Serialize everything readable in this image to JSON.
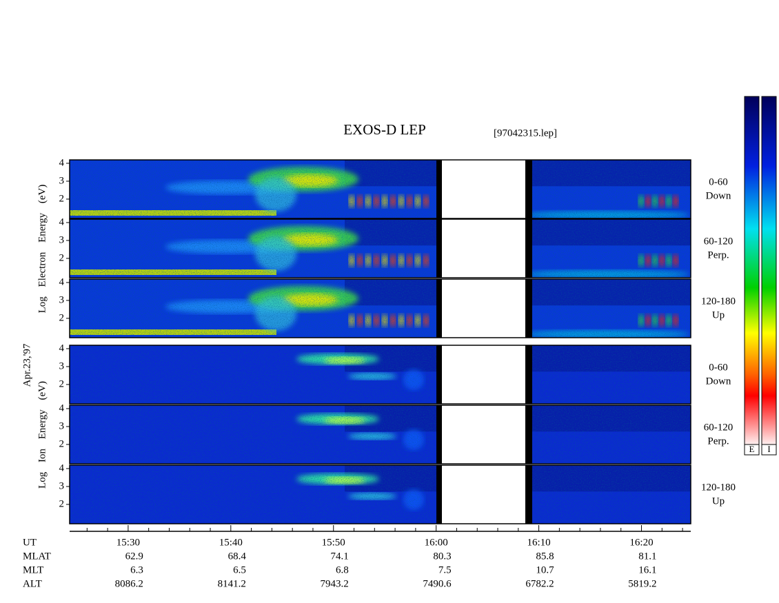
{
  "chart_data": {
    "type": "spectrogram",
    "title": "EXOS-D LEP",
    "file": "[97042315.lep]",
    "date_label": "Apr.23,'97",
    "x_axis_name": "UT",
    "xlim": [
      924.3,
      984.8
    ],
    "xticks": [
      {
        "value": 930,
        "label": "15:30"
      },
      {
        "value": 940,
        "label": "15:40"
      },
      {
        "value": 950,
        "label": "15:50"
      },
      {
        "value": 960,
        "label": "16:00"
      },
      {
        "value": 970,
        "label": "16:10"
      },
      {
        "value": 980,
        "label": "16:20"
      }
    ],
    "x_minor_ticks": [
      926,
      928,
      932,
      934,
      936,
      938,
      942,
      944,
      946,
      948,
      952,
      954,
      956,
      958,
      962,
      964,
      966,
      968,
      972,
      974,
      976,
      978,
      982,
      984
    ],
    "ylim": [
      0.92,
      4.19
    ],
    "yticks": [
      2,
      3,
      4
    ],
    "groups": [
      {
        "axis_label": "Log Electron Energy (eV)",
        "colorbar_label": "E",
        "panels": [
          {
            "pitch": "0-60",
            "direction": "Down"
          },
          {
            "pitch": "60-120",
            "direction": "Perp."
          },
          {
            "pitch": "120-180",
            "direction": "Up"
          }
        ]
      },
      {
        "axis_label": "Log Ion Energy (eV)",
        "colorbar_label": "I",
        "panels": [
          {
            "pitch": "0-60",
            "direction": "Down"
          },
          {
            "pitch": "60-120",
            "direction": "Perp."
          },
          {
            "pitch": "120-180",
            "direction": "Up"
          }
        ]
      }
    ],
    "orbit_rows": [
      {
        "name": "MLAT",
        "values": [
          62.9,
          68.4,
          74.1,
          80.3,
          85.8,
          81.1
        ]
      },
      {
        "name": "MLT",
        "values": [
          6.3,
          6.5,
          6.8,
          7.5,
          10.7,
          16.1
        ]
      },
      {
        "name": "ALT",
        "values": [
          8086.2,
          8141.2,
          7943.2,
          7490.6,
          6782.2,
          5819.2
        ]
      }
    ]
  }
}
